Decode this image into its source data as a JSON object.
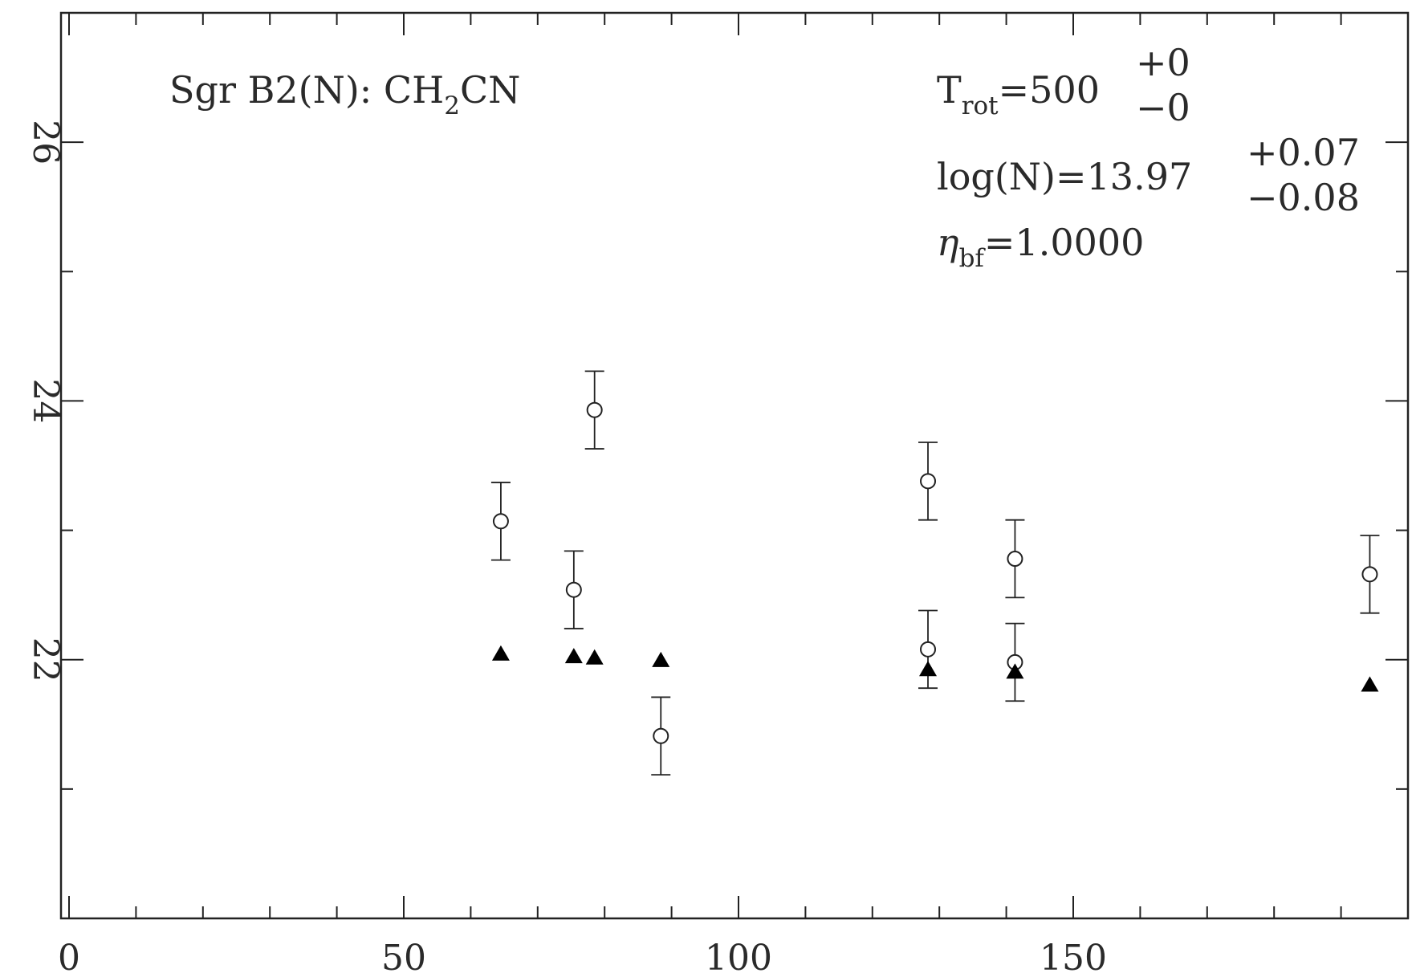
{
  "chart_data": {
    "type": "scatter",
    "title": "",
    "xlabel": "",
    "ylabel": "",
    "xlim": [
      0,
      200
    ],
    "ylim": [
      20,
      27
    ],
    "x_ticks": [
      "0",
      "50",
      "100",
      "150"
    ],
    "y_ticks": [
      "22",
      "24",
      "26"
    ],
    "grid": false,
    "legend": "none",
    "series": [
      {
        "marker": "open-circle",
        "errorbars": true,
        "points": [
          {
            "x": 64.5,
            "y": 23.07,
            "err": 0.3
          },
          {
            "x": 75.4,
            "y": 22.54,
            "err": 0.3
          },
          {
            "x": 78.5,
            "y": 23.93,
            "err": 0.3
          },
          {
            "x": 88.4,
            "y": 21.41,
            "err": 0.3
          },
          {
            "x": 128.3,
            "y": 23.38,
            "err": 0.3
          },
          {
            "x": 128.3,
            "y": 22.08,
            "err": 0.3
          },
          {
            "x": 141.3,
            "y": 22.78,
            "err": 0.3
          },
          {
            "x": 141.3,
            "y": 21.98,
            "err": 0.3
          },
          {
            "x": 194.3,
            "y": 22.66,
            "err": 0.3
          }
        ]
      },
      {
        "marker": "filled-triangle",
        "errorbars": false,
        "points": [
          {
            "x": 64.5,
            "y": 22.04
          },
          {
            "x": 75.4,
            "y": 22.02
          },
          {
            "x": 78.5,
            "y": 22.01
          },
          {
            "x": 88.4,
            "y": 21.99
          },
          {
            "x": 128.3,
            "y": 21.92
          },
          {
            "x": 141.3,
            "y": 21.9
          },
          {
            "x": 194.3,
            "y": 21.8
          }
        ]
      }
    ],
    "annotations": {
      "source_prefix": "Sgr B2(N): CH",
      "source_subscript": "2",
      "source_suffix": "CN",
      "trot_symbol": "T",
      "trot_subscript": "rot",
      "trot_value": "=500",
      "trot_err_plus": "+0",
      "trot_err_minus": "−0",
      "logn_label": "log(N)=13.97",
      "logn_err_plus": "+0.07",
      "logn_err_minus": "−0.08",
      "eta_symbol": "η",
      "eta_subscript": "bf",
      "eta_value": "=1.0000"
    }
  }
}
